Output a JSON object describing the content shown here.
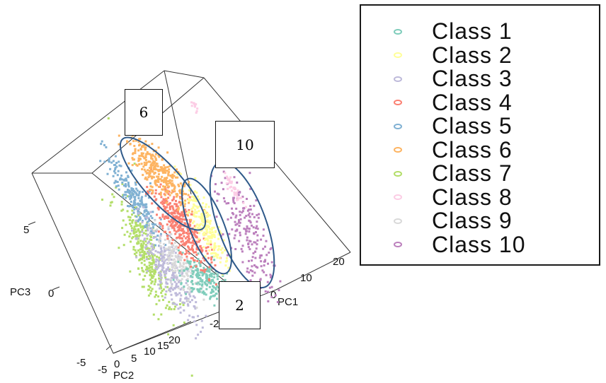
{
  "chart_data": {
    "type": "scatter",
    "subtype": "3d-pca",
    "axes": {
      "x": {
        "label": "PC1",
        "ticks": [
          "20",
          "10",
          "0",
          "-20"
        ]
      },
      "y": {
        "label": "PC2",
        "ticks": [
          "0",
          "5",
          "10",
          "15",
          "20"
        ]
      },
      "z": {
        "label": "PC3",
        "ticks": [
          "5",
          "0",
          "-5"
        ]
      },
      "extra_tick": "-5"
    },
    "legend_position": "right",
    "series": [
      {
        "name": "Class 1",
        "color": "#7fcdbb"
      },
      {
        "name": "Class 2",
        "color": "#ffff99"
      },
      {
        "name": "Class 3",
        "color": "#bebada"
      },
      {
        "name": "Class 4",
        "color": "#fb8072"
      },
      {
        "name": "Class 5",
        "color": "#80b1d3"
      },
      {
        "name": "Class 6",
        "color": "#fdb462"
      },
      {
        "name": "Class 7",
        "color": "#b3de69"
      },
      {
        "name": "Class 8",
        "color": "#fccde5"
      },
      {
        "name": "Class 9",
        "color": "#d9d9d9"
      },
      {
        "name": "Class 10",
        "color": "#bc80bd"
      }
    ],
    "annotations": [
      {
        "label": "6"
      },
      {
        "label": "10"
      },
      {
        "label": "2"
      }
    ],
    "ellipse_color": "#2f5a8a"
  }
}
